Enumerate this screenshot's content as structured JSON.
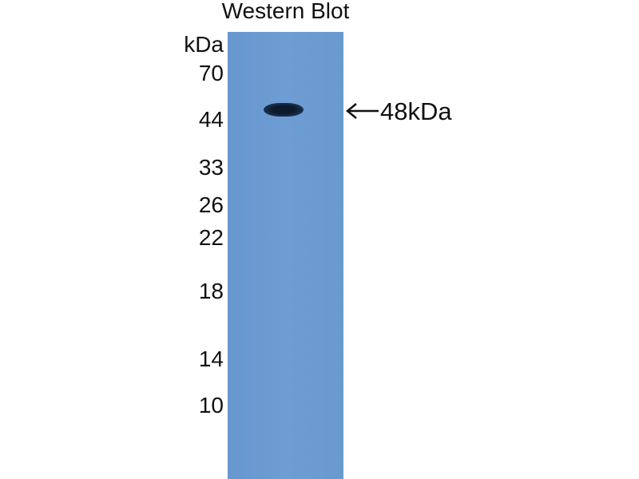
{
  "title": "Western Blot",
  "unit_label": "kDa",
  "markers": [
    "70",
    "44",
    "33",
    "26",
    "22",
    "18",
    "14",
    "10"
  ],
  "band_annotation": "48kDa",
  "colors": {
    "membrane": "#6b9bd2",
    "band": "#0f1f33",
    "text": "#111111"
  },
  "icons": {
    "annotation": "arrow-left-icon"
  }
}
